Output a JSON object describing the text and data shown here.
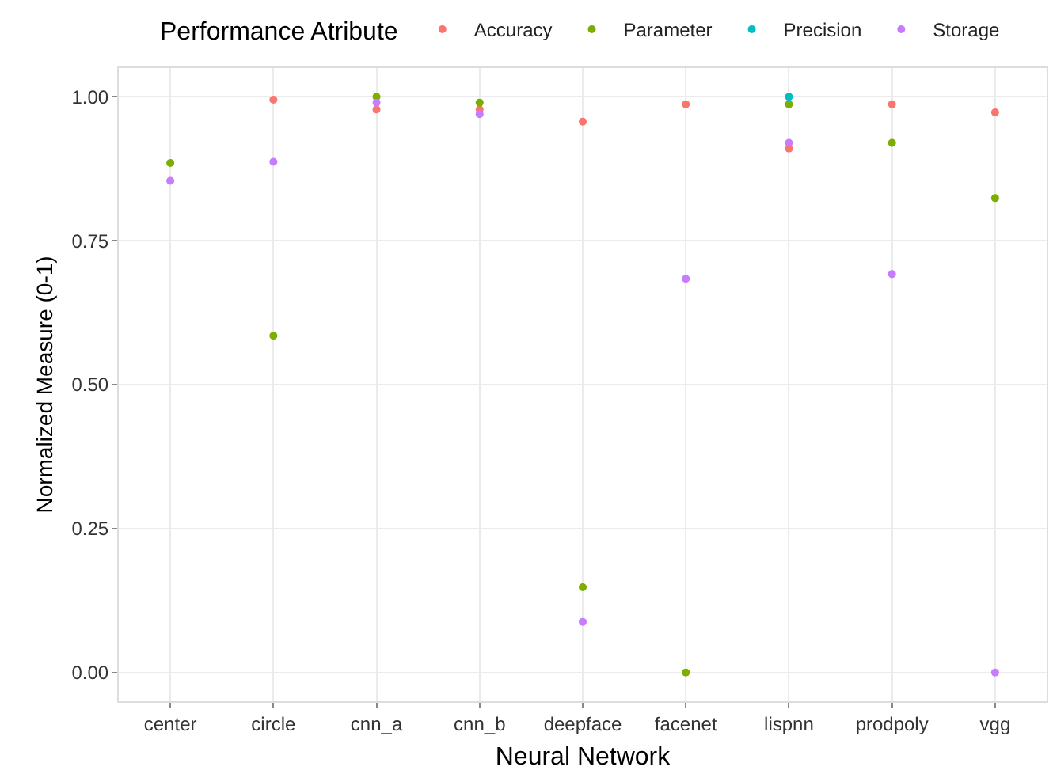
{
  "chart_data": {
    "type": "scatter",
    "xlabel": "Neural Network",
    "ylabel": "Normalized Measure (0-1)",
    "legend_title": "Performance Atribute",
    "categories": [
      "center",
      "circle",
      "cnn_a",
      "cnn_b",
      "deepface",
      "facenet",
      "lispnn",
      "prodpoly",
      "vgg"
    ],
    "series": [
      {
        "name": "Accuracy",
        "color": "#f8766d",
        "values": [
          null,
          0.995,
          0.978,
          0.978,
          0.957,
          0.987,
          0.91,
          0.987,
          0.973
        ]
      },
      {
        "name": "Parameter",
        "color": "#7cae00",
        "values": [
          0.885,
          0.585,
          1.0,
          0.99,
          0.148,
          0,
          0.987,
          0.92,
          0.824
        ]
      },
      {
        "name": "Precision",
        "color": "#00bfc4",
        "values": [
          null,
          null,
          null,
          null,
          null,
          null,
          1.0,
          null,
          null
        ]
      },
      {
        "name": "Storage",
        "color": "#c77cff",
        "values": [
          0.854,
          0.887,
          0.99,
          0.97,
          0.088,
          0.684,
          0.92,
          0.692,
          0
        ]
      }
    ],
    "ylim": [
      -0.05,
      1.05
    ],
    "yticks": [
      {
        "value": 0,
        "label": "0.00"
      },
      {
        "value": 0.25,
        "label": "0.25"
      },
      {
        "value": 0.5,
        "label": "0.50"
      },
      {
        "value": 0.75,
        "label": "0.75"
      },
      {
        "value": 1,
        "label": "1.00"
      }
    ],
    "grid": true,
    "legend": "top",
    "marker": "circle"
  }
}
